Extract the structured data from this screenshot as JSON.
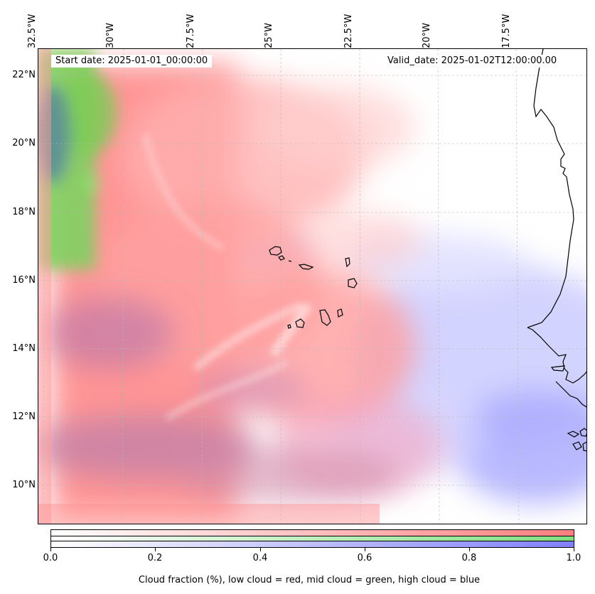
{
  "map": {
    "start_date": "Start date: 2025-01-01_00:00:00",
    "valid_date": "Valid_date: 2025-01-02T12:00:00.00",
    "lon_labels": [
      "32.5°W",
      "30°W",
      "27.5°W",
      "25°W",
      "22.5°W",
      "20°W",
      "17.5°W"
    ],
    "lat_labels": [
      "22°N",
      "20°N",
      "18°N",
      "16°N",
      "14°N",
      "12°N",
      "10°N"
    ],
    "colors": {
      "low_cloud": "#ff7f7f",
      "mid_cloud": "#7fe07f",
      "high_cloud": "#8080ff",
      "coastline": "#000000"
    }
  },
  "colorbar": {
    "ticks": [
      "0.0",
      "0.2",
      "0.4",
      "0.6",
      "0.8",
      "1.0"
    ],
    "title": "Cloud fraction (%), low cloud = red, mid cloud = green, high cloud = blue"
  }
}
